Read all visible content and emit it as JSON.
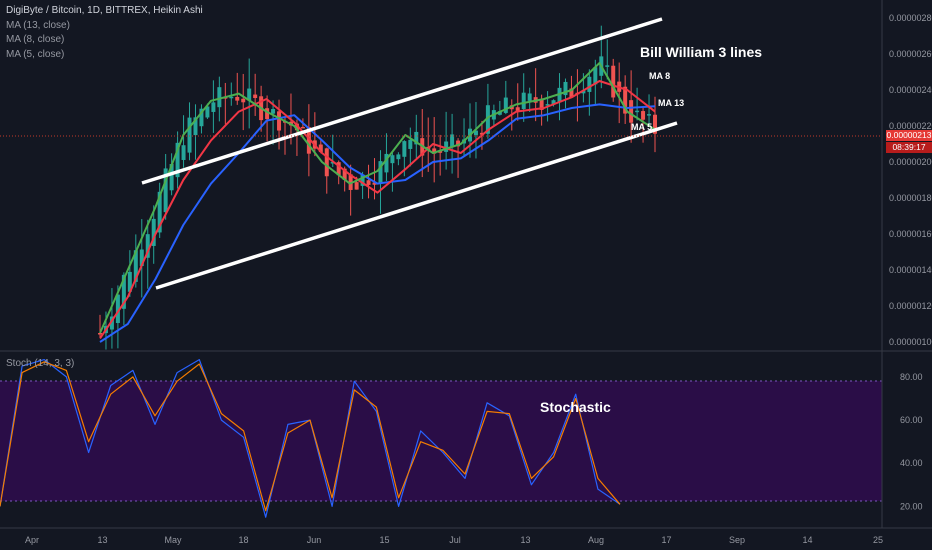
{
  "header": {
    "title": "DigiByte / Bitcoin, 1D, BITTREX, Heikin Ashi",
    "ma_labels": [
      "MA (13, close)",
      "MA (8, close)",
      "MA (5, close)"
    ]
  },
  "stoch_label": "Stoch (14, 3, 3)",
  "price_tag": {
    "value": "0.00000213",
    "timer": "08:39:17"
  },
  "colors": {
    "background": "#131722",
    "up": "#26a69a",
    "down": "#ef5350",
    "ma13": "#2962ff",
    "ma8": "#f23645",
    "ma5": "#4caf50",
    "stoch_k": "#2962ff",
    "stoch_d": "#f57c00",
    "stoch_band": "#2a0d47",
    "price_line": "#c0392b"
  },
  "chart_data": [
    {
      "type": "candlestick",
      "title": "DigiByte / Bitcoin, 1D, BITTREX, Heikin Ashi",
      "x_tick_labels": [
        "Apr",
        "13",
        "May",
        "18",
        "Jun",
        "15",
        "Jul",
        "13",
        "Aug",
        "17",
        "Sep",
        "14",
        "25"
      ],
      "y_tick_labels": [
        "0.00000100",
        "0.00000120",
        "0.00000140",
        "0.00000160",
        "0.00000180",
        "0.00000200",
        "0.00000220",
        "0.00000240",
        "0.00000260",
        "0.00000280"
      ],
      "ylim": [
        9.5e-07,
        2.9e-06
      ],
      "current_price": 2.13e-06,
      "series": [
        {
          "name": "MA (13, close)",
          "type": "line",
          "values": [
            1e-06,
            1.1e-06,
            1.35e-06,
            1.65e-06,
            1.88e-06,
            2.05e-06,
            2.23e-06,
            2.26e-06,
            2.12e-06,
            1.97e-06,
            1.88e-06,
            1.9e-06,
            2e-06,
            2.02e-06,
            2.12e-06,
            2.24e-06,
            2.26e-06,
            2.3e-06,
            2.32e-06,
            2.3e-06,
            2.31e-06
          ]
        },
        {
          "name": "MA (8, close)",
          "type": "line",
          "values": [
            1.02e-06,
            1.25e-06,
            1.6e-06,
            1.9e-06,
            2.12e-06,
            2.28e-06,
            2.35e-06,
            2.22e-06,
            2.05e-06,
            1.93e-06,
            1.83e-06,
            1.96e-06,
            2.1e-06,
            2.05e-06,
            2.18e-06,
            2.28e-06,
            2.3e-06,
            2.36e-06,
            2.45e-06,
            2.4e-06,
            2.28e-06
          ]
        },
        {
          "name": "MA (5, close)",
          "type": "line",
          "values": [
            1.05e-06,
            1.4e-06,
            1.75e-06,
            2.15e-06,
            2.34e-06,
            2.38e-06,
            2.28e-06,
            2.2e-06,
            2e-06,
            1.88e-06,
            1.95e-06,
            2.15e-06,
            2.05e-06,
            2.1e-06,
            2.25e-06,
            2.32e-06,
            2.35e-06,
            2.4e-06,
            2.55e-06,
            2.28e-06,
            2.18e-06
          ]
        }
      ],
      "annotations": [
        "Bill William 3 lines",
        "MA 8",
        "MA 13",
        "MA 5"
      ]
    },
    {
      "type": "line",
      "title": "Stoch (14, 3, 3)",
      "y_tick_labels": [
        "20.00",
        "40.00",
        "60.00",
        "80.00"
      ],
      "ylim": [
        10,
        92
      ],
      "bands": [
        20,
        80
      ],
      "series": [
        {
          "name": "%K",
          "values": [
            20,
            85,
            88,
            80,
            45,
            76,
            83,
            58,
            82,
            88,
            60,
            52,
            15,
            58,
            60,
            20,
            78,
            64,
            20,
            55,
            45,
            33,
            68,
            62,
            30,
            45,
            72,
            28,
            21
          ]
        },
        {
          "name": "%D",
          "values": [
            20,
            82,
            87,
            83,
            50,
            72,
            80,
            62,
            78,
            86,
            63,
            55,
            18,
            54,
            60,
            24,
            74,
            66,
            24,
            50,
            46,
            35,
            64,
            63,
            33,
            43,
            70,
            33,
            21
          ]
        }
      ],
      "annotations": [
        "Stochastic"
      ]
    }
  ]
}
